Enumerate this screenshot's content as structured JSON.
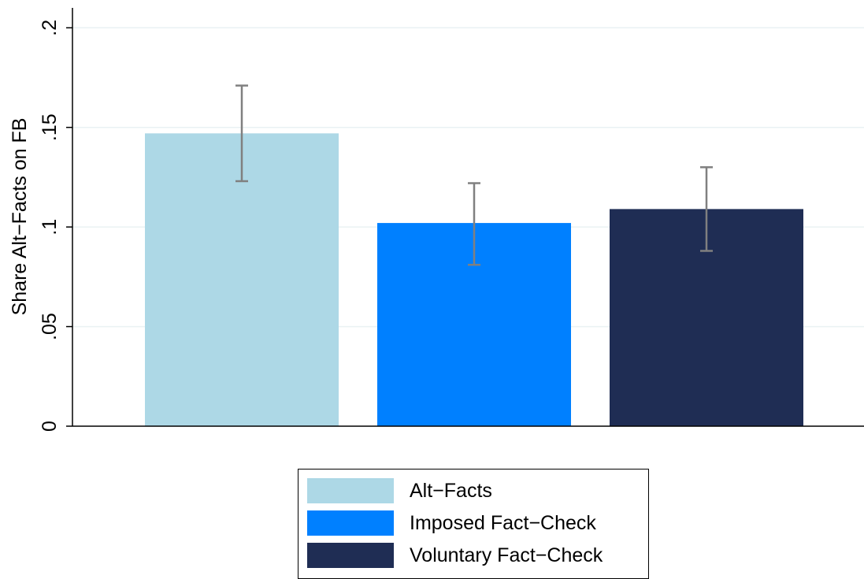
{
  "chart_data": {
    "type": "bar",
    "title": "",
    "xlabel": "",
    "ylabel": "Share Alt−Facts on FB",
    "ylim": [
      0,
      0.21
    ],
    "yticks": [
      {
        "value": 0,
        "label": "0"
      },
      {
        "value": 0.05,
        "label": ".05"
      },
      {
        "value": 0.1,
        "label": ".1"
      },
      {
        "value": 0.15,
        "label": ".15"
      },
      {
        "value": 0.2,
        "label": ".2"
      }
    ],
    "grid": true,
    "legend_position": "bottom",
    "series": [
      {
        "name": "Alt−Facts",
        "value": 0.147,
        "ci_low": 0.123,
        "ci_high": 0.171,
        "color": "#add8e6"
      },
      {
        "name": "Imposed Fact−Check",
        "value": 0.102,
        "ci_low": 0.081,
        "ci_high": 0.122,
        "color": "#0080ff"
      },
      {
        "name": "Voluntary Fact−Check",
        "value": 0.109,
        "ci_low": 0.088,
        "ci_high": 0.13,
        "color": "#1f2d54"
      }
    ],
    "error_bar_color": "#808080",
    "grid_color": "#eaf2f3"
  }
}
